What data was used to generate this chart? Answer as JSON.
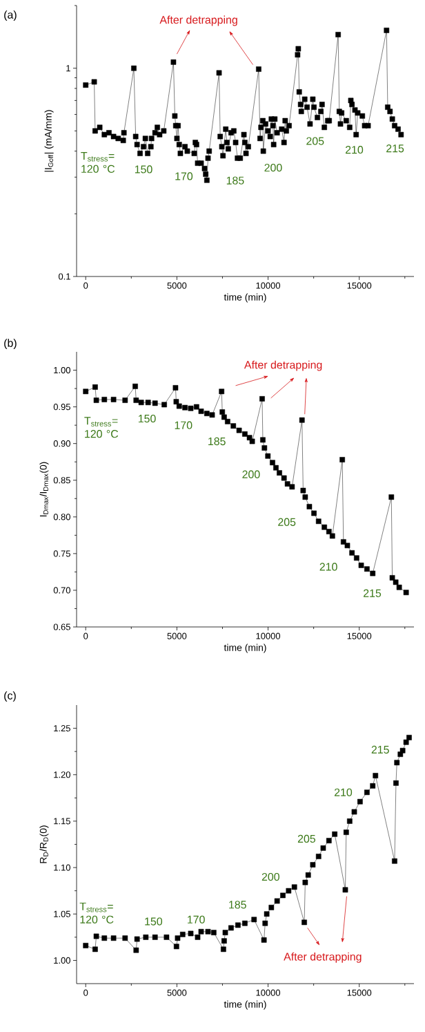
{
  "chart_data": [
    {
      "type": "line",
      "xlabel": "time (min)",
      "ylabel": "|I$_{Goff}$| (mA/mm)",
      "log": "y",
      "marker": "square",
      "xlim": [
        -500,
        18000
      ],
      "ylim": [
        0.1,
        2
      ],
      "xticks": [
        0,
        {
          "value": 2500,
          "label": null
        },
        5000,
        {
          "value": 7500,
          "label": null
        },
        10000,
        {
          "value": 12500,
          "label": null
        },
        15000,
        {
          "value": 17500,
          "label": null
        }
      ],
      "yticks": [
        0.1,
        {
          "value": 0.2,
          "label": null
        },
        {
          "value": 0.3,
          "label": null
        },
        {
          "value": 0.4,
          "label": null
        },
        {
          "value": 0.5,
          "label": null
        },
        {
          "value": 0.6,
          "label": null
        },
        {
          "value": 0.7,
          "label": null
        },
        {
          "value": 0.8,
          "label": null
        },
        {
          "value": 0.9,
          "label": null
        },
        1,
        {
          "value": 2,
          "label": null
        }
      ],
      "x": [
        0,
        467,
        518,
        770,
        1023,
        1275,
        1528,
        1781,
        2059,
        2097,
        2640,
        2741,
        2817,
        2981,
        3170,
        3271,
        3397,
        3574,
        3612,
        3802,
        3928,
        4054,
        4281,
        4812,
        4888,
        4939,
        5002,
        5065,
        5128,
        5191,
        5444,
        5571,
        5950,
        6013,
        6076,
        6139,
        6329,
        6518,
        6581,
        6644,
        6707,
        6770,
        7313,
        7376,
        7465,
        7528,
        7679,
        7742,
        7818,
        7970,
        8121,
        8222,
        8323,
        8474,
        8676,
        8727,
        8790,
        8916,
        9485,
        9561,
        9612,
        9713,
        9738,
        9864,
        9990,
        10117,
        10180,
        10268,
        10306,
        10369,
        10496,
        10748,
        10875,
        10938,
        11001,
        11152,
        11620,
        11657,
        11708,
        11784,
        11822,
        12011,
        12138,
        12302,
        12454,
        12517,
        12706,
        12896,
        12959,
        13086,
        13275,
        13351,
        13843,
        13906,
        13970,
        14033,
        14286,
        14475,
        14538,
        14601,
        14765,
        14829,
        14917,
        15170,
        15296,
        15485,
        16497,
        16560,
        16686,
        16813,
        16939,
        17128,
        17292
      ],
      "series": [
        {
          "color": "#000000",
          "values": [
            0.83,
            0.86,
            0.5,
            0.52,
            0.48,
            0.49,
            0.47,
            0.46,
            0.45,
            0.49,
            1.0,
            0.47,
            0.43,
            0.39,
            0.42,
            0.46,
            0.39,
            0.42,
            0.46,
            0.49,
            0.52,
            0.48,
            0.5,
            1.07,
            0.59,
            0.53,
            0.46,
            0.53,
            0.43,
            0.39,
            0.42,
            0.4,
            0.39,
            0.44,
            0.43,
            0.35,
            0.35,
            0.33,
            0.31,
            0.29,
            0.37,
            0.4,
            0.95,
            0.47,
            0.42,
            0.38,
            0.51,
            0.44,
            0.41,
            0.49,
            0.5,
            0.44,
            0.37,
            0.37,
            0.48,
            0.44,
            0.39,
            0.42,
            0.99,
            0.46,
            0.52,
            0.56,
            0.4,
            0.54,
            0.5,
            0.47,
            0.57,
            0.53,
            0.43,
            0.57,
            0.49,
            0.51,
            0.44,
            0.56,
            0.5,
            0.53,
            1.16,
            1.24,
            0.77,
            0.67,
            0.62,
            0.71,
            0.65,
            0.54,
            0.71,
            0.65,
            0.58,
            0.62,
            0.67,
            0.52,
            0.56,
            0.56,
            1.45,
            0.62,
            0.54,
            0.61,
            0.56,
            0.52,
            0.7,
            0.67,
            0.63,
            0.48,
            0.61,
            0.59,
            0.53,
            0.53,
            1.52,
            0.65,
            0.62,
            0.57,
            0.53,
            0.51,
            0.48
          ]
        }
      ],
      "annotations": [
        "(a)",
        "T$_{stress}$= 120 °C",
        "150",
        "170",
        "185",
        "200",
        "205",
        "210",
        "215",
        "After detrapping"
      ]
    },
    {
      "type": "line",
      "xlabel": "time (min)",
      "ylabel": "I$_{Dmax}$/I$_{Dmax}$(0)",
      "marker": "square",
      "xlim": [
        -500,
        18000
      ],
      "ylim": [
        0.65,
        1.025
      ],
      "xticks": [
        0,
        {
          "value": 2500,
          "label": null
        },
        5000,
        {
          "value": 7500,
          "label": null
        },
        10000,
        {
          "value": 12500,
          "label": null
        },
        15000,
        {
          "value": 17500,
          "label": null
        }
      ],
      "yticks": [
        {
          "value": 0.65,
          "label": "0.65"
        },
        {
          "value": 0.675,
          "label": null
        },
        {
          "value": 0.7,
          "label": "0.70"
        },
        {
          "value": 0.725,
          "label": null
        },
        {
          "value": 0.75,
          "label": "0.75"
        },
        {
          "value": 0.775,
          "label": null
        },
        {
          "value": 0.8,
          "label": "0.80"
        },
        {
          "value": 0.825,
          "label": null
        },
        {
          "value": 0.85,
          "label": "0.85"
        },
        {
          "value": 0.875,
          "label": null
        },
        {
          "value": 0.9,
          "label": "0.90"
        },
        {
          "value": 0.925,
          "label": null
        },
        {
          "value": 0.95,
          "label": "0.95"
        },
        {
          "value": 0.975,
          "label": null
        },
        {
          "value": 1.0,
          "label": "1.00"
        }
      ],
      "x": [
        0,
        518,
        581,
        1023,
        1528,
        2160,
        2716,
        2766,
        3043,
        3422,
        3802,
        4307,
        4926,
        4964,
        5128,
        5444,
        5760,
        6076,
        6329,
        6644,
        6934,
        7452,
        7490,
        7591,
        7780,
        8096,
        8412,
        8727,
        8980,
        9131,
        9675,
        9713,
        9801,
        9990,
        10243,
        10432,
        10622,
        10875,
        11064,
        11316,
        11860,
        11923,
        12037,
        12265,
        12517,
        12770,
        13086,
        13338,
        13527,
        14070,
        14134,
        14348,
        14601,
        14854,
        15107,
        15422,
        15738,
        16761,
        16811,
        17001,
        17191,
        17570
      ],
      "series": [
        {
          "color": "#000000",
          "values": [
            0.971,
            0.977,
            0.959,
            0.96,
            0.96,
            0.959,
            0.978,
            0.959,
            0.956,
            0.956,
            0.955,
            0.953,
            0.976,
            0.957,
            0.951,
            0.949,
            0.948,
            0.95,
            0.944,
            0.941,
            0.939,
            0.971,
            0.943,
            0.936,
            0.93,
            0.924,
            0.918,
            0.913,
            0.908,
            0.903,
            0.961,
            0.905,
            0.894,
            0.883,
            0.874,
            0.867,
            0.86,
            0.853,
            0.845,
            0.841,
            0.932,
            0.836,
            0.827,
            0.814,
            0.805,
            0.794,
            0.786,
            0.78,
            0.774,
            0.878,
            0.766,
            0.761,
            0.751,
            0.744,
            0.734,
            0.729,
            0.723,
            0.827,
            0.717,
            0.711,
            0.704,
            0.697
          ]
        }
      ],
      "annotations": [
        "(b)",
        "T$_{stress}$= 120 °C",
        "150",
        "170",
        "185",
        "200",
        "205",
        "210",
        "215",
        "After detrapping"
      ]
    },
    {
      "type": "line",
      "xlabel": "time (min)",
      "ylabel": "R$_{D}$/R$_{D}$(0)",
      "marker": "square",
      "xlim": [
        -500,
        18000
      ],
      "ylim": [
        0.975,
        1.275
      ],
      "xticks": [
        0,
        {
          "value": 2500,
          "label": null
        },
        5000,
        {
          "value": 7500,
          "label": null
        },
        10000,
        {
          "value": 12500,
          "label": null
        },
        15000,
        {
          "value": 17500,
          "label": null
        }
      ],
      "yticks": [
        {
          "value": 1.0,
          "label": "1.00"
        },
        {
          "value": 1.025,
          "label": null
        },
        {
          "value": 1.05,
          "label": "1.05"
        },
        {
          "value": 1.075,
          "label": null
        },
        {
          "value": 1.1,
          "label": "1.10"
        },
        {
          "value": 1.125,
          "label": null
        },
        {
          "value": 1.15,
          "label": "1.15"
        },
        {
          "value": 1.175,
          "label": null
        },
        {
          "value": 1.2,
          "label": "1.20"
        },
        {
          "value": 1.225,
          "label": null
        },
        {
          "value": 1.25,
          "label": "1.25"
        }
      ],
      "x": [
        0,
        518,
        581,
        1023,
        1528,
        2160,
        2766,
        2817,
        3296,
        3802,
        4433,
        4977,
        5040,
        5318,
        5760,
        6139,
        6329,
        6707,
        7022,
        7553,
        7591,
        7654,
        7970,
        8348,
        8727,
        9232,
        9776,
        9839,
        9927,
        10180,
        10496,
        10812,
        11127,
        11443,
        11986,
        12037,
        12201,
        12454,
        12770,
        13023,
        13338,
        13654,
        14235,
        14285,
        14475,
        14727,
        15043,
        15422,
        15738,
        15890,
        16938,
        17014,
        17064,
        17254,
        17380,
        17570,
        17734
      ],
      "series": [
        {
          "color": "#000000",
          "values": [
            1.016,
            1.012,
            1.026,
            1.024,
            1.024,
            1.024,
            1.011,
            1.023,
            1.025,
            1.025,
            1.025,
            1.015,
            1.024,
            1.028,
            1.029,
            1.025,
            1.031,
            1.031,
            1.03,
            1.012,
            1.021,
            1.03,
            1.035,
            1.038,
            1.04,
            1.044,
            1.022,
            1.04,
            1.05,
            1.057,
            1.064,
            1.07,
            1.075,
            1.079,
            1.041,
            1.084,
            1.092,
            1.103,
            1.112,
            1.121,
            1.129,
            1.136,
            1.076,
            1.138,
            1.15,
            1.16,
            1.171,
            1.181,
            1.188,
            1.199,
            1.107,
            1.191,
            1.213,
            1.222,
            1.226,
            1.235,
            1.24
          ]
        }
      ],
      "annotations": [
        "(c)",
        "T$_{stress}$= 120 °C",
        "150",
        "170",
        "185",
        "200",
        "205",
        "210",
        "215",
        "After detrapping"
      ]
    }
  ]
}
